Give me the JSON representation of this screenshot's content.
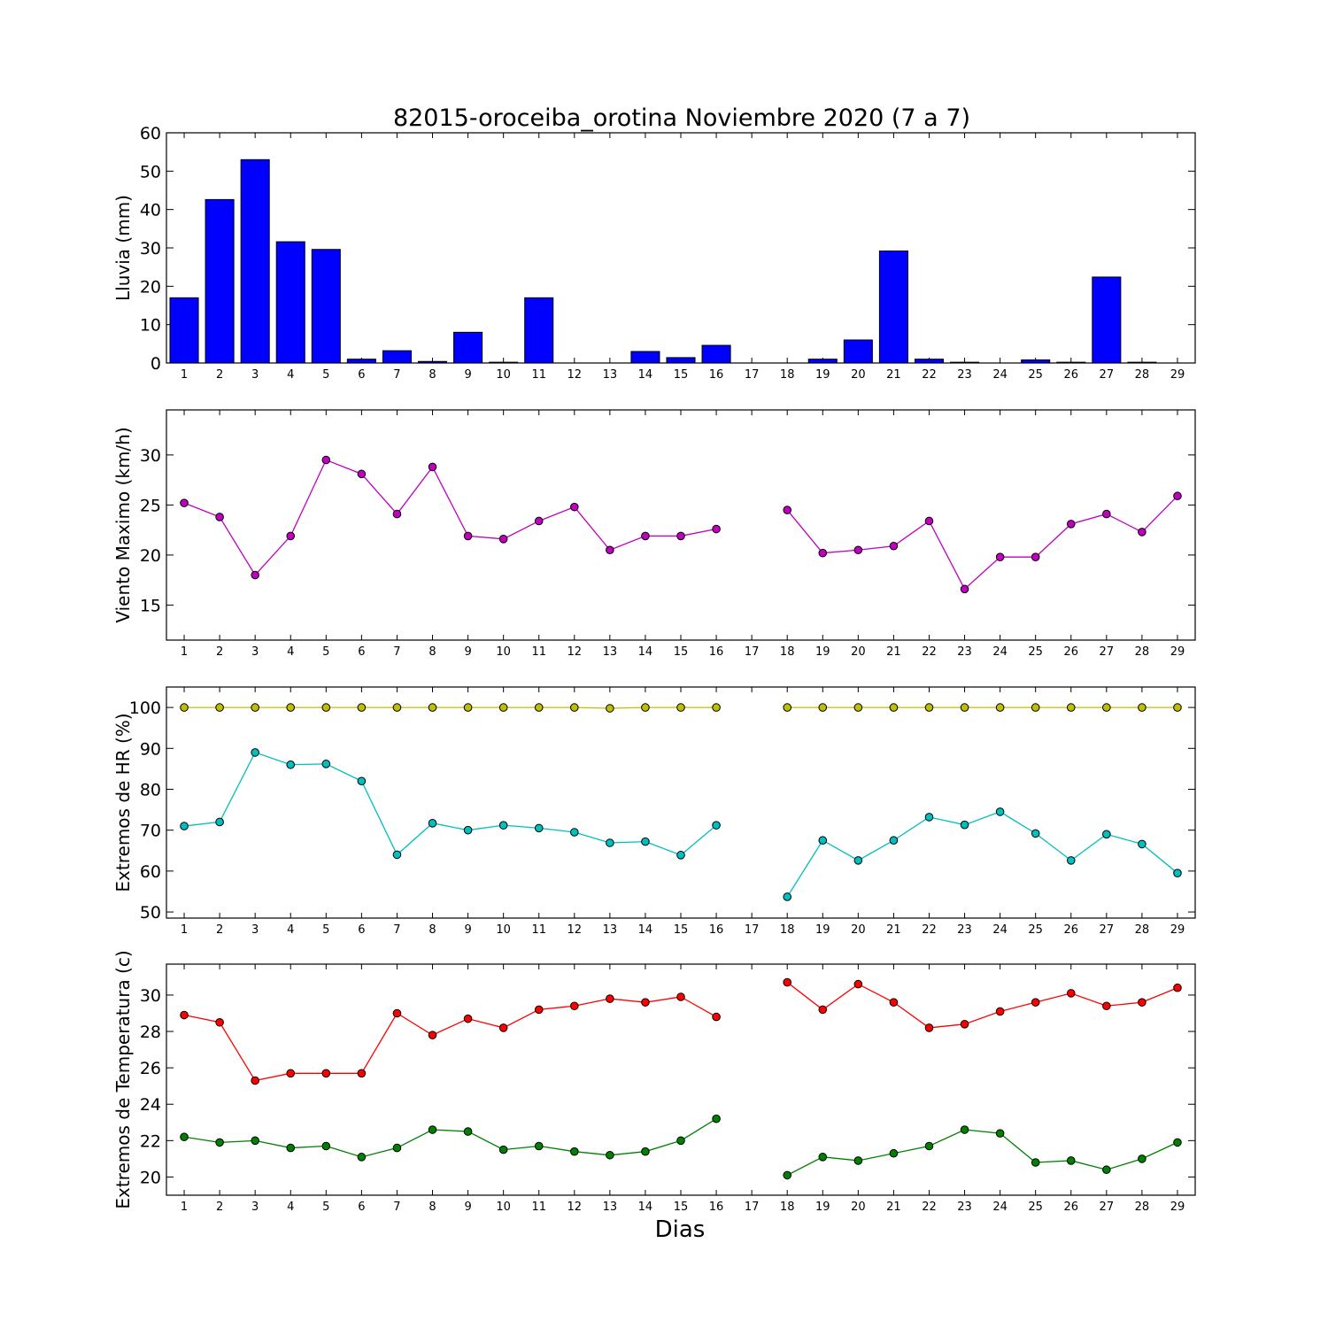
{
  "figure_title": "82015-oroceiba_orotina Noviembre 2020  (7 a 7)",
  "xlabel": "Dias",
  "colors": {
    "rain": "#0000ff",
    "wind": "#bf00bf",
    "hr_max": "#bfbf00",
    "hr_min": "#00bfbf",
    "temp_max": "#ff0000",
    "temp_min": "#008000"
  },
  "chart_data": [
    {
      "type": "bar",
      "ylabel": "Lluvia (mm)",
      "categories": [
        "1",
        "2",
        "3",
        "4",
        "5",
        "6",
        "7",
        "8",
        "9",
        "10",
        "11",
        "12",
        "13",
        "14",
        "15",
        "16",
        "17",
        "18",
        "19",
        "20",
        "21",
        "22",
        "23",
        "24",
        "25",
        "26",
        "27",
        "28",
        "29"
      ],
      "values": [
        17.0,
        42.6,
        53.0,
        31.6,
        29.6,
        1.0,
        3.2,
        0.4,
        8.0,
        0.2,
        17.0,
        0,
        0,
        3.0,
        1.4,
        4.6,
        0,
        0,
        1.0,
        6.0,
        29.2,
        1.0,
        0.2,
        0,
        0.8,
        0.2,
        22.4,
        0.2,
        0
      ],
      "ylim": [
        0,
        60
      ],
      "yticks": [
        0,
        10,
        20,
        30,
        40,
        50,
        60
      ]
    },
    {
      "type": "line",
      "ylabel": "Viento Maximo (km/h)",
      "categories": [
        "1",
        "2",
        "3",
        "4",
        "5",
        "6",
        "7",
        "8",
        "9",
        "10",
        "11",
        "12",
        "13",
        "14",
        "15",
        "16",
        "17",
        "18",
        "19",
        "20",
        "21",
        "22",
        "23",
        "24",
        "25",
        "26",
        "27",
        "28",
        "29"
      ],
      "series": [
        {
          "values": [
            25.2,
            23.8,
            18.0,
            21.9,
            29.5,
            28.1,
            24.1,
            28.8,
            21.9,
            21.6,
            23.4,
            24.8,
            20.5,
            21.9,
            21.9,
            22.6,
            null,
            24.5,
            20.2,
            20.5,
            20.9,
            23.4,
            16.6,
            19.8,
            19.8,
            23.1,
            24.1,
            22.3,
            25.9
          ]
        }
      ],
      "ylim": [
        11.5,
        34.5
      ],
      "yticks": [
        15,
        20,
        25,
        30
      ]
    },
    {
      "type": "line",
      "ylabel": "Extremos de HR (%)",
      "categories": [
        "1",
        "2",
        "3",
        "4",
        "5",
        "6",
        "7",
        "8",
        "9",
        "10",
        "11",
        "12",
        "13",
        "14",
        "15",
        "16",
        "17",
        "18",
        "19",
        "20",
        "21",
        "22",
        "23",
        "24",
        "25",
        "26",
        "27",
        "28",
        "29"
      ],
      "series": [
        {
          "values": [
            100,
            100,
            100,
            100,
            100,
            100,
            100,
            100,
            100,
            100,
            100,
            100,
            99.8,
            100,
            100,
            100,
            null,
            100,
            100,
            100,
            100,
            100,
            100,
            100,
            100,
            100,
            100,
            100,
            100
          ]
        },
        {
          "values": [
            71.0,
            72.0,
            89.0,
            86.0,
            86.2,
            82.0,
            64.0,
            71.7,
            70.0,
            71.2,
            70.5,
            69.5,
            66.9,
            67.2,
            63.9,
            71.2,
            null,
            53.7,
            67.5,
            62.6,
            67.5,
            73.2,
            71.3,
            74.5,
            69.2,
            62.6,
            69.0,
            66.6,
            59.5
          ]
        }
      ],
      "ylim": [
        48.5,
        105
      ],
      "yticks": [
        50,
        60,
        70,
        80,
        90,
        100
      ]
    },
    {
      "type": "line",
      "ylabel": "Extremos de Temperatura (c)",
      "categories": [
        "1",
        "2",
        "3",
        "4",
        "5",
        "6",
        "7",
        "8",
        "9",
        "10",
        "11",
        "12",
        "13",
        "14",
        "15",
        "16",
        "17",
        "18",
        "19",
        "20",
        "21",
        "22",
        "23",
        "24",
        "25",
        "26",
        "27",
        "28",
        "29"
      ],
      "series": [
        {
          "values": [
            28.9,
            28.5,
            25.3,
            25.7,
            25.7,
            25.7,
            29.0,
            27.8,
            28.7,
            28.2,
            29.2,
            29.4,
            29.8,
            29.6,
            29.9,
            28.8,
            null,
            30.7,
            29.2,
            30.6,
            29.6,
            28.2,
            28.4,
            29.1,
            29.6,
            30.1,
            29.4,
            29.6,
            30.4
          ]
        },
        {
          "values": [
            22.2,
            21.9,
            22.0,
            21.6,
            21.7,
            21.1,
            21.6,
            22.6,
            22.5,
            21.5,
            21.7,
            21.4,
            21.2,
            21.4,
            22.0,
            23.2,
            null,
            20.1,
            21.1,
            20.9,
            21.3,
            21.7,
            22.6,
            22.4,
            20.8,
            20.9,
            20.4,
            21.0,
            21.9
          ]
        }
      ],
      "ylim": [
        19.0,
        31.7
      ],
      "yticks": [
        20,
        22,
        24,
        26,
        28,
        30
      ]
    }
  ]
}
